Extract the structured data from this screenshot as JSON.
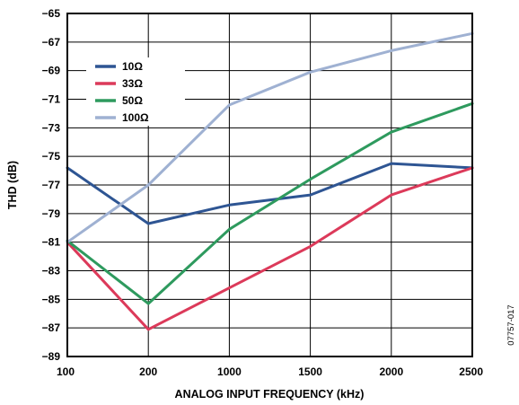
{
  "chart_data": {
    "type": "line",
    "xlabel": "ANALOG INPUT FREQUENCY (kHz)",
    "ylabel": "THD (dB)",
    "categories": [
      "100",
      "200",
      "1000",
      "1500",
      "2000",
      "2500"
    ],
    "ylim": [
      -89,
      -65
    ],
    "yticks": [
      "-65",
      "-67",
      "-69",
      "-71",
      "-73",
      "-75",
      "-77",
      "-79",
      "-81",
      "-83",
      "-85",
      "-87",
      "-89"
    ],
    "grid": true,
    "legend_position": "top-left",
    "figure_id": "07757-017",
    "series": [
      {
        "name": "10Ω",
        "color": "#2e5593",
        "values": [
          -75.8,
          -79.7,
          -78.4,
          -77.7,
          -75.5,
          -75.8
        ]
      },
      {
        "name": "33Ω",
        "color": "#dc3a5a",
        "values": [
          -81.0,
          -87.1,
          -84.2,
          -81.3,
          -77.7,
          -75.8
        ]
      },
      {
        "name": "50Ω",
        "color": "#2e9a5e",
        "values": [
          -80.9,
          -85.3,
          -80.1,
          -76.6,
          -73.3,
          -71.3
        ]
      },
      {
        "name": "100Ω",
        "color": "#9fb1d2",
        "values": [
          -81.0,
          -77.0,
          -71.4,
          -69.1,
          -67.6,
          -66.4
        ]
      }
    ]
  }
}
